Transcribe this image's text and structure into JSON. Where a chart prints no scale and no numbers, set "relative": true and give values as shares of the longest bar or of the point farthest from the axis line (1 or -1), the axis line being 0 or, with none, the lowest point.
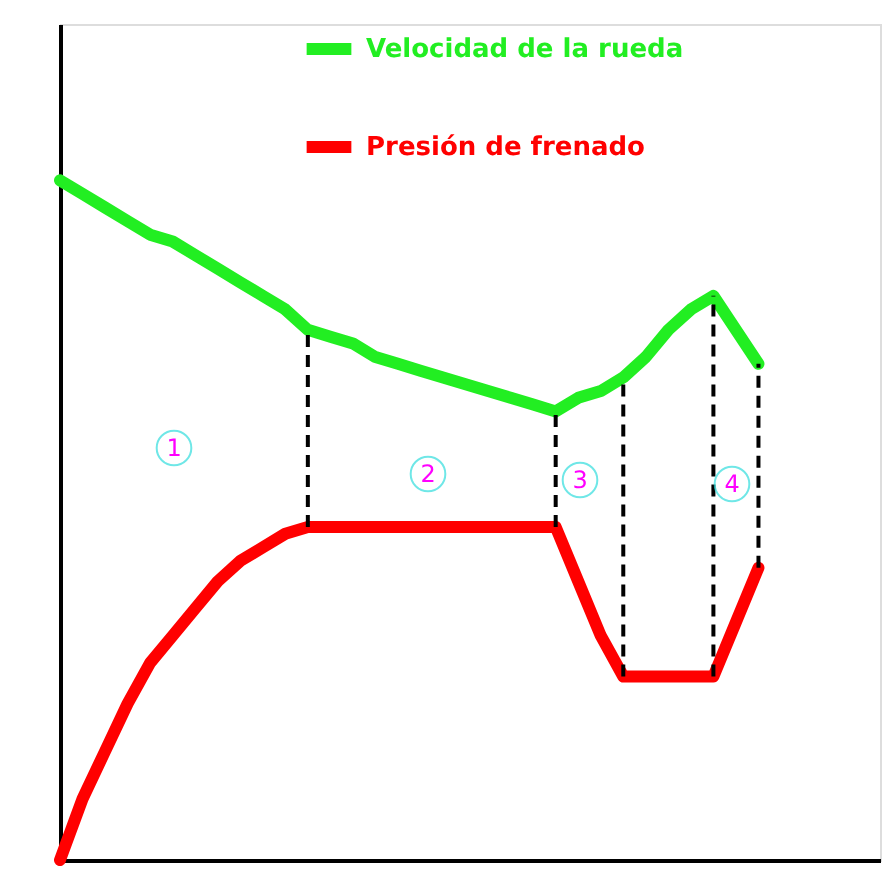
{
  "chart_data": {
    "type": "line",
    "relative": true,
    "tick_labels": false,
    "legend": "top right",
    "line_style": "solid",
    "categories": [
      null,
      null,
      null,
      null,
      null,
      null,
      null,
      null,
      null,
      null,
      null,
      null,
      null,
      null,
      null,
      null,
      null,
      null,
      null,
      null,
      null,
      null,
      null,
      null,
      null,
      null,
      null,
      null,
      null,
      null,
      null,
      null
    ],
    "series": [
      {
        "name": "Velocidad de la rueda",
        "color": "#22ee22",
        "values": [
          1.0,
          0.98,
          0.96,
          0.94,
          0.92,
          0.91,
          0.89,
          0.87,
          0.85,
          0.83,
          0.81,
          0.78,
          0.77,
          0.76,
          0.74,
          0.73,
          0.72,
          0.71,
          0.7,
          0.69,
          0.68,
          0.67,
          0.66,
          0.68,
          0.69,
          0.71,
          0.74,
          0.78,
          0.81,
          0.83,
          0.78,
          0.73
        ]
      },
      {
        "name": "Presión de frenado",
        "color": "#ff0000",
        "values": [
          0,
          0.09,
          0.16,
          0.23,
          0.29,
          0.33,
          0.37,
          0.41,
          0.44,
          0.46,
          0.48,
          0.49,
          0.49,
          0.49,
          0.49,
          0.49,
          0.49,
          0.49,
          0.49,
          0.49,
          0.49,
          0.49,
          0.49,
          0.41,
          0.33,
          0.27,
          0.27,
          0.27,
          0.27,
          0.27,
          0.35,
          0.43
        ]
      }
    ],
    "annotations": [
      "1",
      "2",
      "3",
      "4"
    ]
  }
}
